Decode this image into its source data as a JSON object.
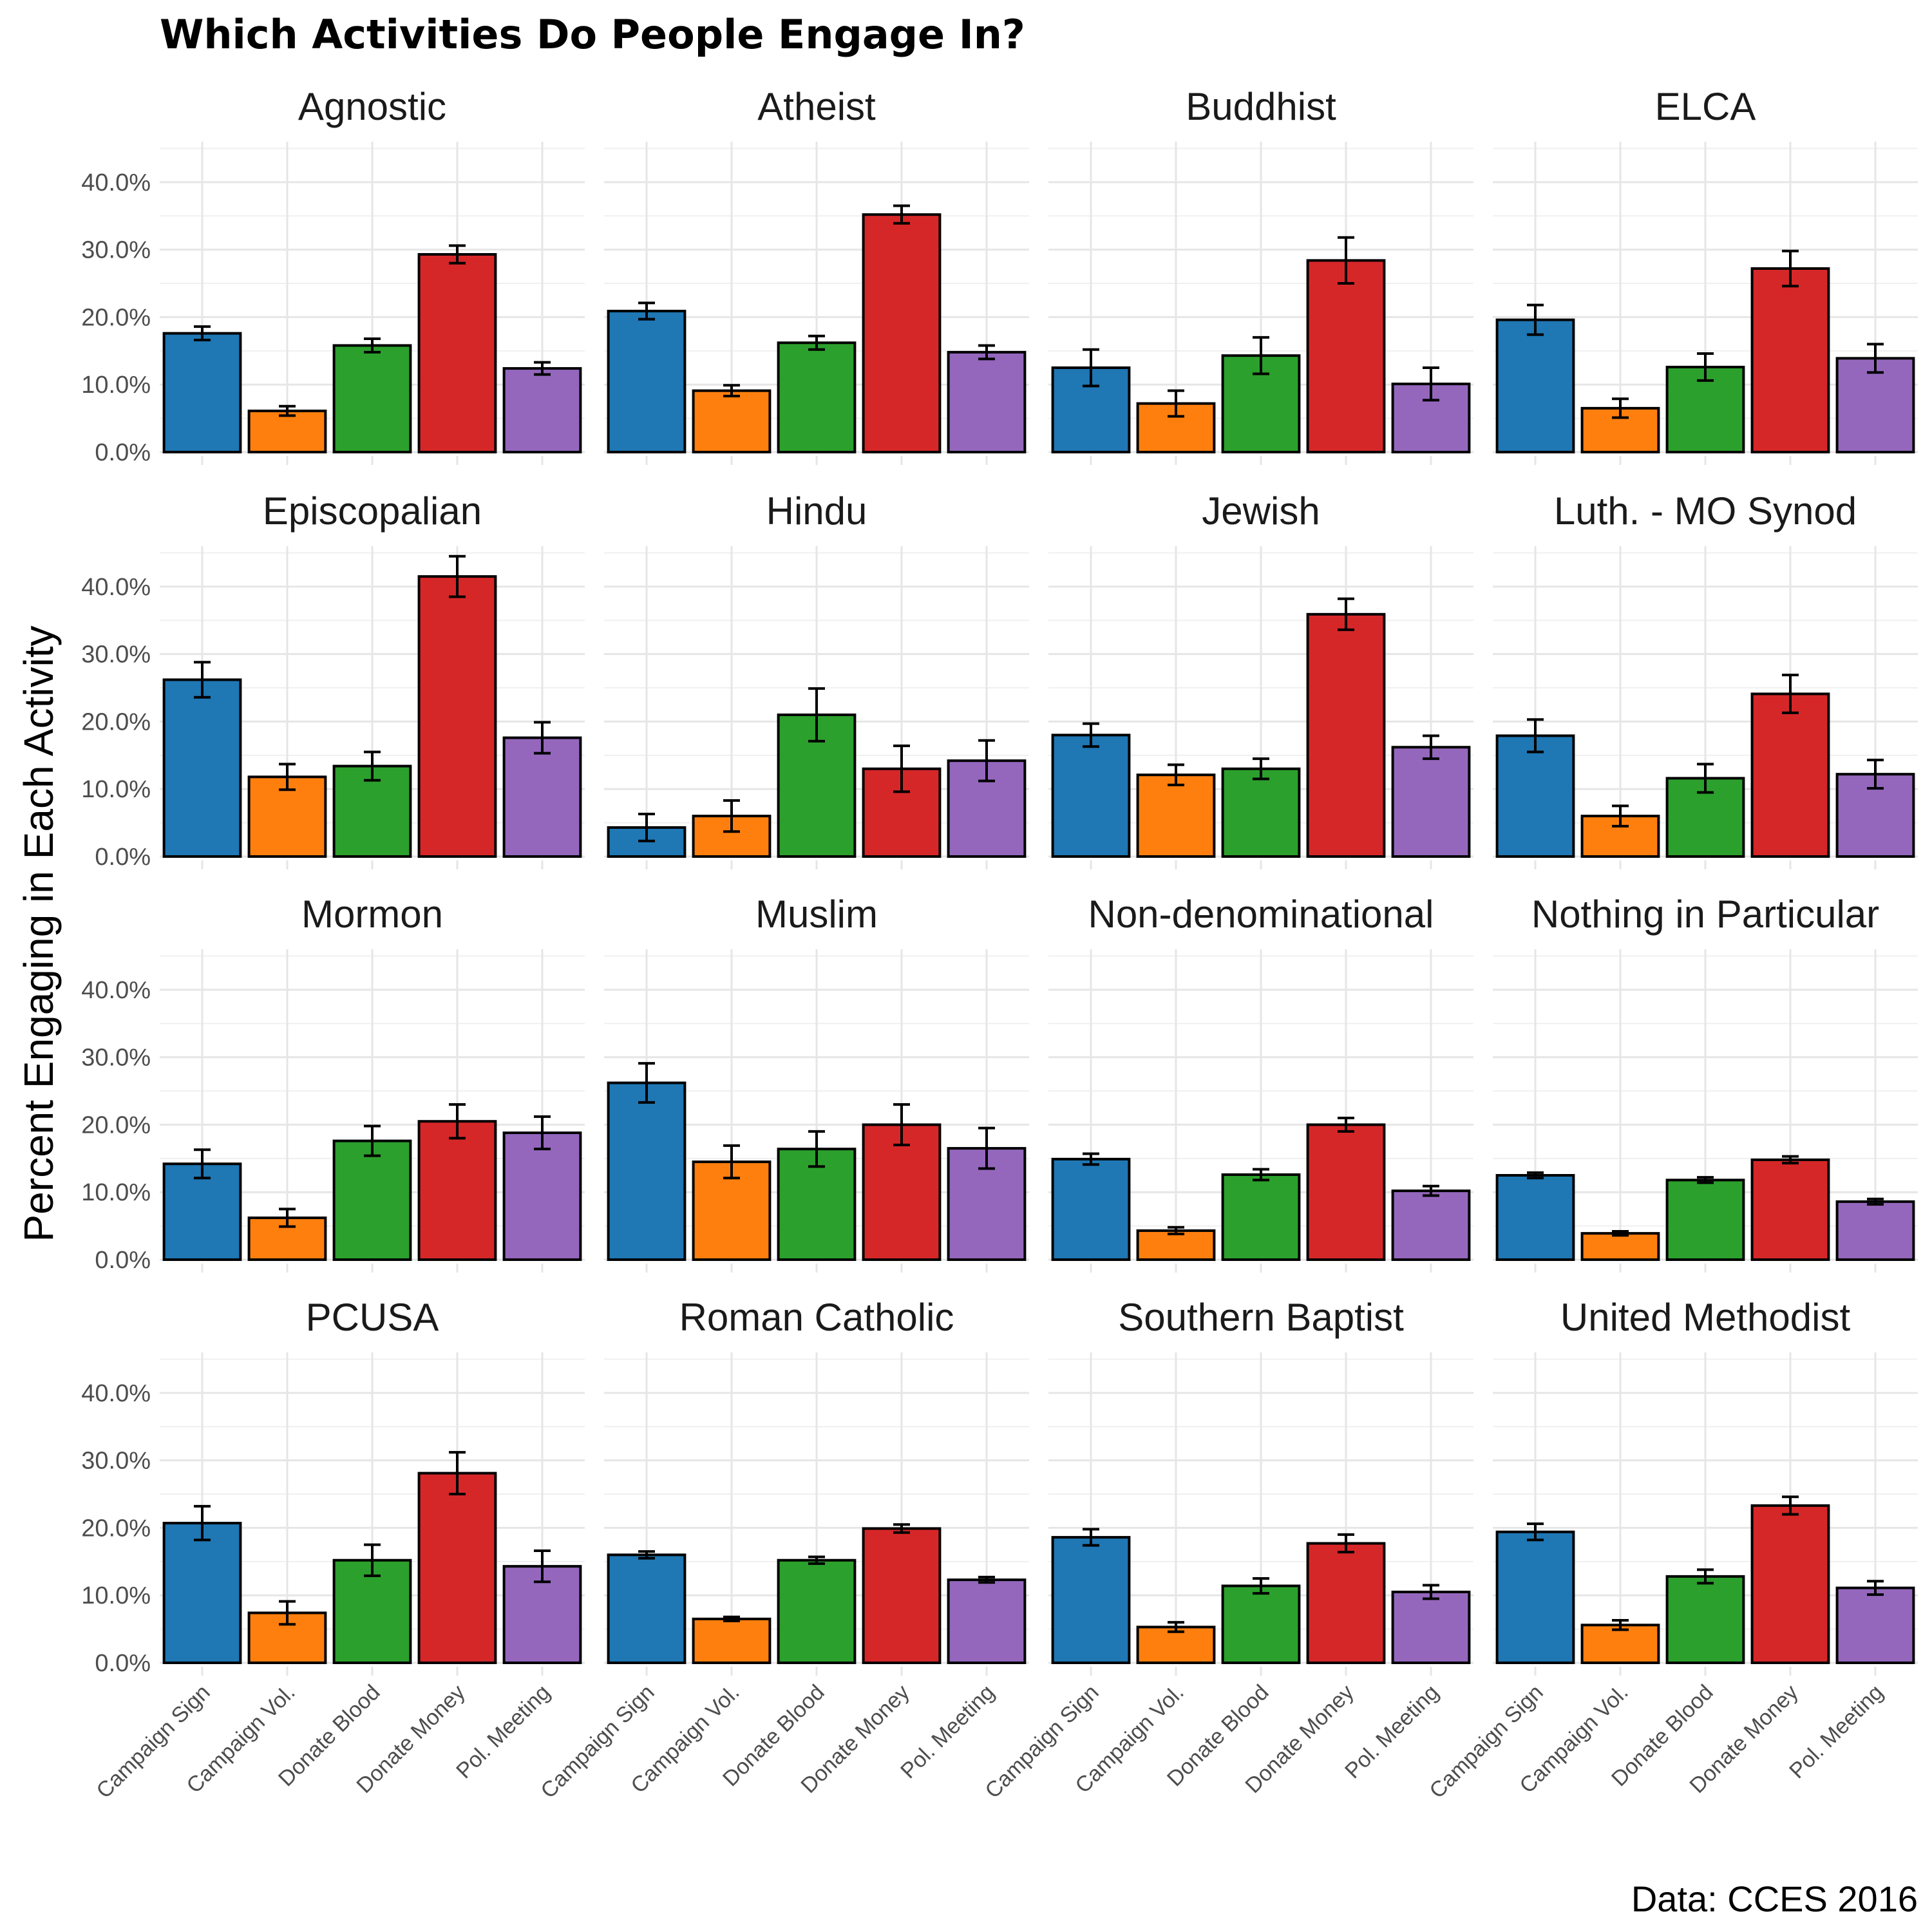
{
  "chart_data": {
    "type": "bar",
    "title": "Which Activities Do People Engage In?",
    "caption": "Data: CCES 2016",
    "ylabel": "Percent Engaging in Each Activity",
    "xlabel": "",
    "ylim": [
      0,
      0.46
    ],
    "y_ticks": [
      "0.0%",
      "10.0%",
      "20.0%",
      "30.0%",
      "40.0%"
    ],
    "grid": true,
    "categories": [
      "Campaign Sign",
      "Campaign Vol.",
      "Donate Blood",
      "Donate Money",
      "Pol. Meeting"
    ],
    "colors": {
      "Campaign Sign": "#1f77b4",
      "Campaign Vol.": "#ff7f0e",
      "Donate Blood": "#2ca02c",
      "Donate Money": "#d62728",
      "Pol. Meeting": "#9467bd"
    },
    "panels": [
      {
        "name": "Agnostic",
        "values": [
          0.176,
          0.061,
          0.158,
          0.293,
          0.124
        ],
        "error": [
          0.01,
          0.007,
          0.01,
          0.013,
          0.009
        ]
      },
      {
        "name": "Atheist",
        "values": [
          0.209,
          0.091,
          0.162,
          0.352,
          0.148
        ],
        "error": [
          0.012,
          0.008,
          0.01,
          0.013,
          0.01
        ]
      },
      {
        "name": "Buddhist",
        "values": [
          0.125,
          0.072,
          0.143,
          0.284,
          0.101
        ],
        "error": [
          0.027,
          0.019,
          0.027,
          0.034,
          0.024
        ]
      },
      {
        "name": "ELCA",
        "values": [
          0.196,
          0.065,
          0.126,
          0.272,
          0.139
        ],
        "error": [
          0.022,
          0.014,
          0.02,
          0.026,
          0.021
        ]
      },
      {
        "name": "Episcopalian",
        "values": [
          0.262,
          0.118,
          0.134,
          0.415,
          0.176
        ],
        "error": [
          0.026,
          0.019,
          0.021,
          0.03,
          0.023
        ]
      },
      {
        "name": "Hindu",
        "values": [
          0.043,
          0.06,
          0.21,
          0.13,
          0.142
        ],
        "error": [
          0.02,
          0.023,
          0.039,
          0.034,
          0.03
        ]
      },
      {
        "name": "Jewish",
        "values": [
          0.18,
          0.121,
          0.13,
          0.359,
          0.162
        ],
        "error": [
          0.017,
          0.015,
          0.015,
          0.023,
          0.017
        ]
      },
      {
        "name": "Luth. - MO Synod",
        "values": [
          0.179,
          0.06,
          0.116,
          0.241,
          0.122
        ],
        "error": [
          0.024,
          0.015,
          0.021,
          0.028,
          0.021
        ]
      },
      {
        "name": "Mormon",
        "values": [
          0.142,
          0.062,
          0.176,
          0.205,
          0.188
        ],
        "error": [
          0.021,
          0.013,
          0.022,
          0.025,
          0.024
        ]
      },
      {
        "name": "Muslim",
        "values": [
          0.262,
          0.145,
          0.164,
          0.2,
          0.165
        ],
        "error": [
          0.029,
          0.024,
          0.026,
          0.03,
          0.03
        ]
      },
      {
        "name": "Non-denominational",
        "values": [
          0.149,
          0.043,
          0.126,
          0.2,
          0.102
        ],
        "error": [
          0.008,
          0.005,
          0.008,
          0.01,
          0.007
        ]
      },
      {
        "name": "Nothing in Particular",
        "values": [
          0.125,
          0.039,
          0.118,
          0.148,
          0.086
        ],
        "error": [
          0.004,
          0.003,
          0.004,
          0.005,
          0.004
        ]
      },
      {
        "name": "PCUSA",
        "values": [
          0.207,
          0.074,
          0.152,
          0.281,
          0.143
        ],
        "error": [
          0.025,
          0.017,
          0.023,
          0.031,
          0.023
        ]
      },
      {
        "name": "Roman Catholic",
        "values": [
          0.16,
          0.065,
          0.152,
          0.199,
          0.123
        ],
        "error": [
          0.005,
          0.003,
          0.005,
          0.006,
          0.004
        ]
      },
      {
        "name": "Southern Baptist",
        "values": [
          0.186,
          0.053,
          0.114,
          0.177,
          0.105
        ],
        "error": [
          0.012,
          0.007,
          0.011,
          0.013,
          0.01
        ]
      },
      {
        "name": "United Methodist",
        "values": [
          0.194,
          0.056,
          0.128,
          0.233,
          0.111
        ],
        "error": [
          0.012,
          0.007,
          0.01,
          0.013,
          0.01
        ]
      }
    ]
  }
}
